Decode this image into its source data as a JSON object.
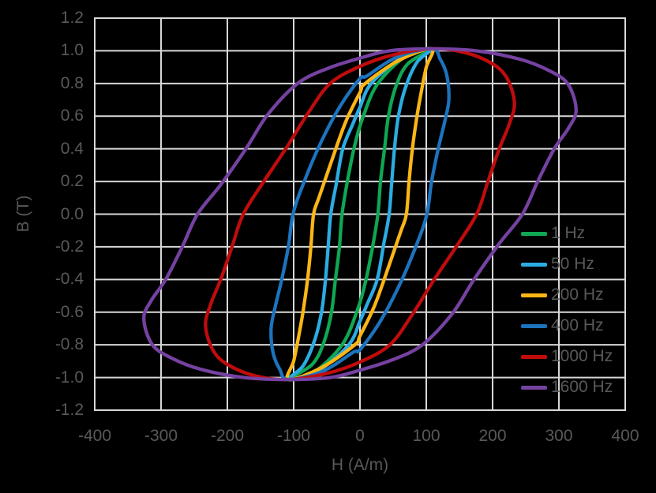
{
  "background_color": "#000000",
  "text_color": "#595959",
  "grid_color": "#D8D8D8",
  "chart_data": {
    "type": "line",
    "subtype": "magnetic-hysteresis-loops",
    "title": "",
    "xlabel": "H (A/m)",
    "ylabel": "B (T)",
    "xlim": [
      -400,
      400
    ],
    "ylim": [
      -1.2,
      1.2
    ],
    "xticks": [
      "-400",
      "-300",
      "-200",
      "-100",
      "0",
      "100",
      "200",
      "300",
      "400"
    ],
    "yticks": [
      "1.2",
      "1.0",
      "0.8",
      "0.6",
      "0.4",
      "0.2",
      "0.0",
      "-0.2",
      "-0.4",
      "-0.6",
      "-0.8",
      "-1.0",
      "-1.2"
    ],
    "grid": true,
    "legend_position": "right-inside",
    "loop_tip_points": [
      [
        108,
        1.012
      ],
      [
        -108,
        -1.012
      ]
    ],
    "loop_symmetry_note": "Each loop is closed: descending branch = ascending branch rotated 180 deg about origin",
    "series": [
      {
        "name": "1 Hz",
        "color": "#0FA753",
        "coercive_field_A_per_m": 27,
        "remanence_T": 0.6,
        "max_H_extent_A_per_m": 108,
        "ascending_branch": [
          [
            -108,
            -1.012
          ],
          [
            -70,
            -0.97
          ],
          [
            -27,
            -0.8
          ],
          [
            -5,
            -0.6
          ],
          [
            8,
            -0.42
          ],
          [
            19,
            -0.2
          ],
          [
            27,
            0
          ],
          [
            31,
            0.2
          ],
          [
            37,
            0.4
          ],
          [
            43,
            0.6
          ],
          [
            54,
            0.78
          ],
          [
            72,
            0.92
          ],
          [
            108,
            1.012
          ]
        ]
      },
      {
        "name": "50 Hz",
        "color": "#2BACE2",
        "coercive_field_A_per_m": 44,
        "remanence_T": 0.66,
        "max_H_extent_A_per_m": 108,
        "ascending_branch": [
          [
            -108,
            -1.012
          ],
          [
            -62,
            -0.955
          ],
          [
            -17,
            -0.8
          ],
          [
            0,
            -0.655
          ],
          [
            11,
            -0.55
          ],
          [
            26,
            -0.4
          ],
          [
            36,
            -0.18
          ],
          [
            44,
            0
          ],
          [
            48,
            0.2
          ],
          [
            52,
            0.4
          ],
          [
            58,
            0.6
          ],
          [
            69,
            0.78
          ],
          [
            86,
            0.93
          ],
          [
            108,
            1.012
          ]
        ]
      },
      {
        "name": "200 Hz",
        "color": "#FBB615",
        "coercive_field_A_per_m": 70,
        "remanence_T": 0.75,
        "max_H_extent_A_per_m": 108,
        "ascending_branch": [
          [
            -108,
            -1.012
          ],
          [
            -58,
            -0.94
          ],
          [
            -8,
            -0.8
          ],
          [
            0,
            -0.745
          ],
          [
            22,
            -0.56
          ],
          [
            45,
            -0.3
          ],
          [
            62,
            -0.1
          ],
          [
            70,
            0
          ],
          [
            74,
            0.2
          ],
          [
            79,
            0.4
          ],
          [
            86,
            0.6
          ],
          [
            93,
            0.76
          ],
          [
            100,
            0.9
          ],
          [
            108,
            1.012
          ]
        ]
      },
      {
        "name": "400 Hz",
        "color": "#1C73BE",
        "coercive_field_A_per_m": 101,
        "remanence_T": 0.83,
        "max_H_extent_A_per_m": 134,
        "ascending_branch": [
          [
            -108,
            -1.012
          ],
          [
            -55,
            -0.96
          ],
          [
            -10,
            -0.845
          ],
          [
            0,
            -0.83
          ],
          [
            30,
            -0.66
          ],
          [
            60,
            -0.43
          ],
          [
            86,
            -0.18
          ],
          [
            101,
            0
          ],
          [
            108,
            0.2
          ],
          [
            118,
            0.4
          ],
          [
            128,
            0.57
          ],
          [
            134,
            0.7
          ],
          [
            131,
            0.85
          ],
          [
            121,
            0.95
          ],
          [
            108,
            1.012
          ]
        ]
      },
      {
        "name": "1000 Hz",
        "color": "#C00C0C",
        "coercive_field_A_per_m": 176,
        "remanence_T": 0.9,
        "max_H_extent_A_per_m": 233,
        "ascending_branch": [
          [
            -108,
            -1.012
          ],
          [
            -50,
            -0.975
          ],
          [
            0,
            -0.905
          ],
          [
            45,
            -0.8
          ],
          [
            78,
            -0.62
          ],
          [
            112,
            -0.4
          ],
          [
            145,
            -0.2
          ],
          [
            176,
            0
          ],
          [
            193,
            0.2
          ],
          [
            210,
            0.4
          ],
          [
            225,
            0.55
          ],
          [
            233,
            0.68
          ],
          [
            222,
            0.83
          ],
          [
            200,
            0.92
          ],
          [
            158,
            0.99
          ],
          [
            108,
            1.012
          ]
        ]
      },
      {
        "name": "1600 Hz",
        "color": "#7542A1",
        "coercive_field_A_per_m": 245,
        "remanence_T": 0.95,
        "max_H_extent_A_per_m": 326,
        "ascending_branch": [
          [
            -108,
            -1.012
          ],
          [
            -45,
            -1.0
          ],
          [
            0,
            -0.955
          ],
          [
            50,
            -0.89
          ],
          [
            94,
            -0.8
          ],
          [
            139,
            -0.61
          ],
          [
            172,
            -0.4
          ],
          [
            210,
            -0.18
          ],
          [
            245,
            0
          ],
          [
            268,
            0.2
          ],
          [
            293,
            0.4
          ],
          [
            315,
            0.53
          ],
          [
            326,
            0.64
          ],
          [
            313,
            0.8
          ],
          [
            282,
            0.885
          ],
          [
            240,
            0.95
          ],
          [
            175,
            1.0
          ],
          [
            108,
            1.012
          ]
        ]
      }
    ]
  }
}
